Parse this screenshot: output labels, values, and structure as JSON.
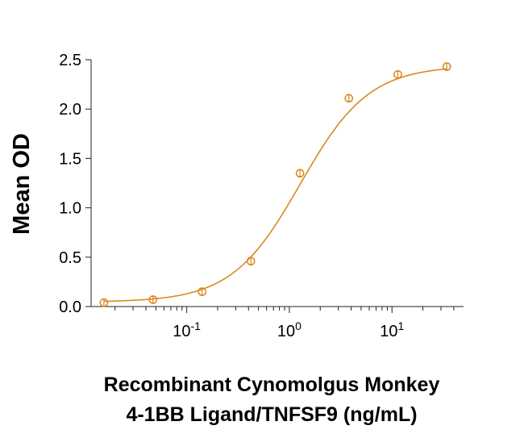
{
  "chart_data": {
    "type": "scatter",
    "xscale": "log",
    "ylabel": "Mean OD",
    "xlabel_lines": [
      "Recombinant Cynomolgus Monkey",
      "4-1BB Ligand/TNFSF9 (ng/mL)"
    ],
    "ylim": [
      0,
      2.5
    ],
    "yticks": [
      "0.0",
      "0.5",
      "1.0",
      "1.5",
      "2.0",
      "2.5"
    ],
    "xticks": [
      {
        "value": 0.1,
        "base": "10",
        "exp": "-1"
      },
      {
        "value": 1,
        "base": "10",
        "exp": "0"
      },
      {
        "value": 10,
        "base": "10",
        "exp": "1"
      }
    ],
    "grid": false,
    "series": [
      {
        "color": "#D98A1E",
        "marker": "open-circle",
        "has_fit_curve": true,
        "error_bars": true,
        "x": [
          0.0156,
          0.0469,
          0.141,
          0.422,
          1.27,
          3.8,
          11.4,
          34.2
        ],
        "y": [
          0.04,
          0.07,
          0.15,
          0.46,
          1.35,
          2.11,
          2.35,
          2.43
        ]
      }
    ]
  }
}
